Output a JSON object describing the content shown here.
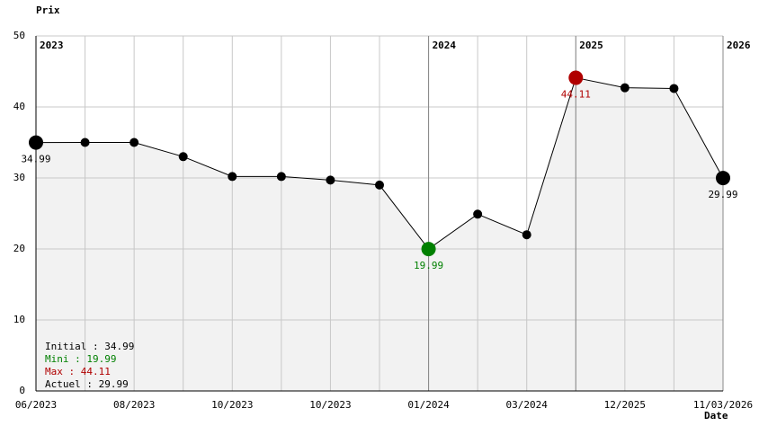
{
  "chart_data": {
    "type": "line",
    "ylabel": "Prix",
    "xlabel": "Date",
    "categories": [
      "06/2023",
      null,
      "08/2023",
      null,
      "10/2023",
      null,
      "10/2023",
      null,
      "01/2024",
      null,
      "03/2024",
      null,
      "12/2025",
      null,
      "11/03/2026"
    ],
    "values": [
      34.99,
      35,
      35,
      33,
      30.2,
      30.2,
      29.7,
      29,
      19.99,
      24.9,
      22,
      44.11,
      42.7,
      42.6,
      29.99
    ],
    "value_labels": [
      "34.99",
      null,
      null,
      null,
      null,
      null,
      null,
      null,
      "19.99",
      null,
      null,
      "44.11",
      null,
      null,
      "29.99"
    ],
    "color": "#000000",
    "area_color": "#f2f2f2",
    "highlights": [
      {
        "index": 0,
        "color": "#000000"
      },
      {
        "index": 8,
        "color": "#008000"
      },
      {
        "index": 11,
        "color": "#b00000"
      },
      {
        "index": 14,
        "color": "#000000"
      }
    ],
    "year_markers": [
      {
        "index": 0,
        "label": "2023"
      },
      {
        "index": 8,
        "label": "2024"
      },
      {
        "index": 11,
        "label": "2025"
      },
      {
        "index": 14,
        "label": "2026"
      }
    ],
    "summary": [
      {
        "text": "Initial : 34.99",
        "color": "#000000"
      },
      {
        "text": "Mini : 19.99",
        "color": "#008000"
      },
      {
        "text": "Max : 44.11",
        "color": "#b00000"
      },
      {
        "text": "Actuel : 29.99",
        "color": "#000000"
      }
    ],
    "ylim": [
      0,
      50
    ],
    "yticks": [
      0,
      10,
      20,
      30,
      40,
      50
    ],
    "grid": true
  }
}
